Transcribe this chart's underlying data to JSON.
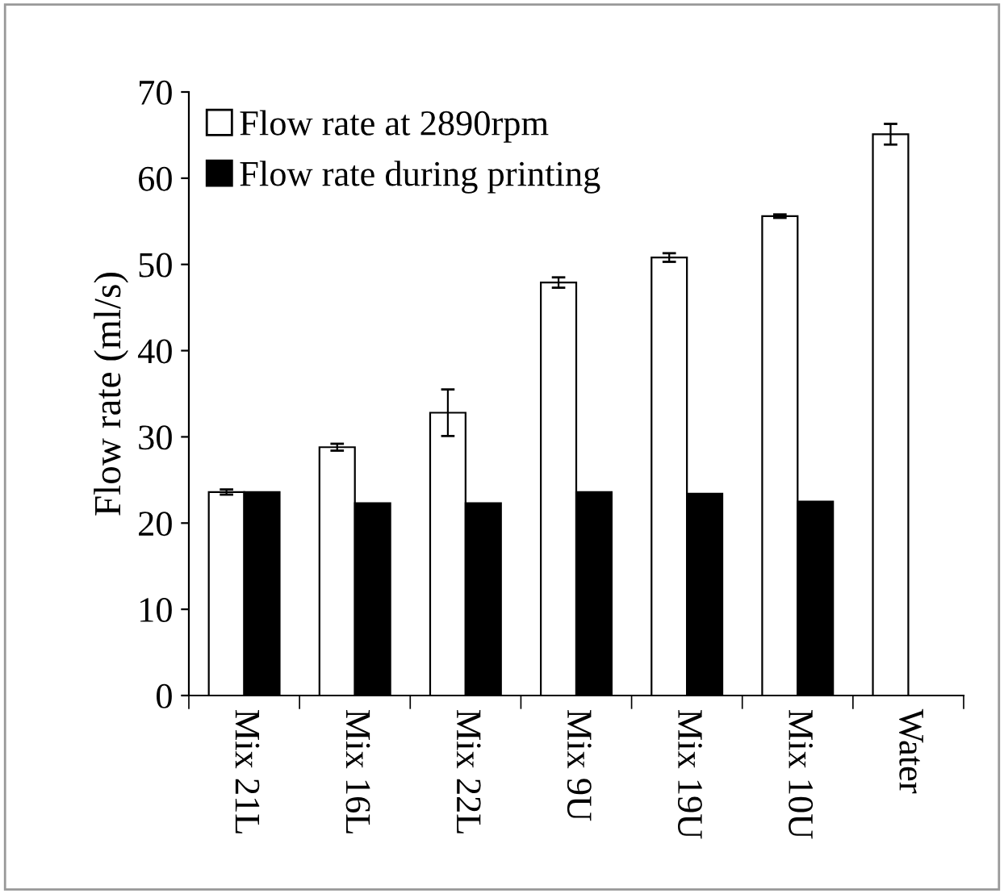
{
  "chart_data": {
    "type": "bar",
    "ylabel": "Flow rate (ml/s)",
    "categories": [
      "Mix 21L",
      "Mix 16L",
      "Mix 22L",
      "Mix 9U",
      "Mix 19U",
      "Mix 10U",
      "Water"
    ],
    "series": [
      {
        "name": "Flow rate at 2890rpm",
        "color": "#ffffff",
        "values": [
          23.6,
          28.8,
          32.8,
          47.9,
          50.8,
          55.6,
          65.1
        ],
        "errors": [
          0.3,
          0.4,
          2.7,
          0.6,
          0.5,
          0.2,
          1.2
        ]
      },
      {
        "name": "Flow rate during printing",
        "color": "#000000",
        "values": [
          23.6,
          22.3,
          22.3,
          23.6,
          23.4,
          22.5,
          null
        ]
      }
    ],
    "ylim": [
      0,
      70
    ],
    "yticks": [
      0,
      10,
      20,
      30,
      40,
      50,
      60,
      70
    ],
    "grid": false,
    "legend": "top left"
  }
}
